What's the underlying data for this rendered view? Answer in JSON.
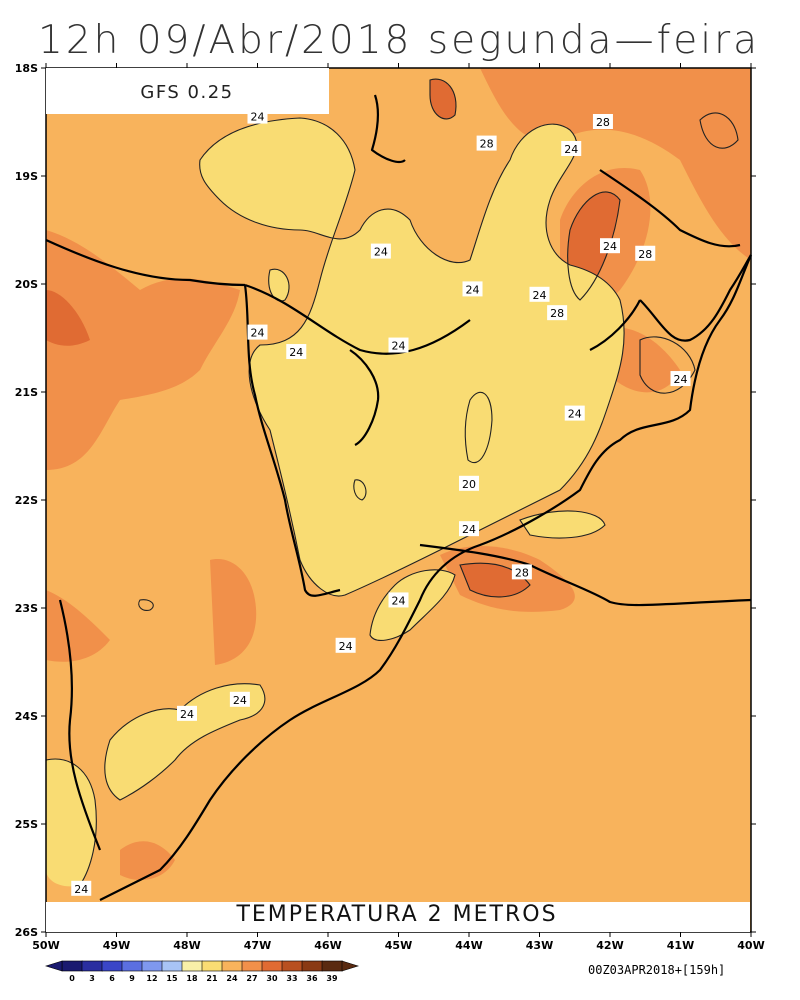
{
  "title": "12h 09/Abr/2018 segunda—feira",
  "model_label": "GFS 0.25",
  "field_label": "TEMPERATURA 2 METROS",
  "run_stamp": "00Z03APR2018+[159h]",
  "lat_labels": [
    "18S",
    "19S",
    "20S",
    "21S",
    "22S",
    "23S",
    "24S",
    "25S",
    "26S"
  ],
  "lon_labels": [
    "50W",
    "49W",
    "48W",
    "47W",
    "46W",
    "45W",
    "44W",
    "43W",
    "42W",
    "41W",
    "40W"
  ],
  "contour_labels": [
    {
      "text": "24",
      "lon": -47.0,
      "lat": -18.45
    },
    {
      "text": "28",
      "lon": -43.75,
      "lat": -18.7
    },
    {
      "text": "28",
      "lon": -42.1,
      "lat": -18.5
    },
    {
      "text": "24",
      "lon": -42.55,
      "lat": -18.75
    },
    {
      "text": "24",
      "lon": -45.25,
      "lat": -19.7
    },
    {
      "text": "24",
      "lon": -42.0,
      "lat": -19.65
    },
    {
      "text": "28",
      "lon": -41.5,
      "lat": -19.72
    },
    {
      "text": "24",
      "lon": -43.95,
      "lat": -20.05
    },
    {
      "text": "24",
      "lon": -43.0,
      "lat": -20.1
    },
    {
      "text": "28",
      "lon": -42.75,
      "lat": -20.27
    },
    {
      "text": "24",
      "lon": -47.0,
      "lat": -20.45
    },
    {
      "text": "24",
      "lon": -46.45,
      "lat": -20.63
    },
    {
      "text": "24",
      "lon": -45.0,
      "lat": -20.57
    },
    {
      "text": "24",
      "lon": -41.0,
      "lat": -20.88
    },
    {
      "text": "24",
      "lon": -42.5,
      "lat": -21.2
    },
    {
      "text": "20",
      "lon": -44.0,
      "lat": -21.85
    },
    {
      "text": "24",
      "lon": -44.0,
      "lat": -22.27
    },
    {
      "text": "28",
      "lon": -43.25,
      "lat": -22.67
    },
    {
      "text": "24",
      "lon": -45.0,
      "lat": -22.93
    },
    {
      "text": "24",
      "lon": -45.75,
      "lat": -23.35
    },
    {
      "text": "24",
      "lon": -47.25,
      "lat": -23.85
    },
    {
      "text": "24",
      "lon": -48.0,
      "lat": -23.98
    },
    {
      "text": "24",
      "lon": -49.5,
      "lat": -25.6
    }
  ],
  "colorbar": {
    "ticks": [
      "0",
      "3",
      "6",
      "9",
      "12",
      "15",
      "18",
      "21",
      "24",
      "27",
      "30",
      "33",
      "36",
      "39"
    ],
    "colors": [
      "#1a1a70",
      "#2a2ea0",
      "#3a46c8",
      "#5b6fe0",
      "#7f98ee",
      "#a8c4f5",
      "#f8f0a8",
      "#f9dc73",
      "#f8b35c",
      "#f1904a",
      "#e06b33",
      "#b85020",
      "#8a3a14",
      "#5a2a10"
    ]
  },
  "field_colors": {
    "t21_24": "#f9dc73",
    "t24_27": "#f8b35c",
    "t27_30": "#f1904a",
    "t30_33": "#e06b33",
    "t33_36": "#b85020"
  }
}
